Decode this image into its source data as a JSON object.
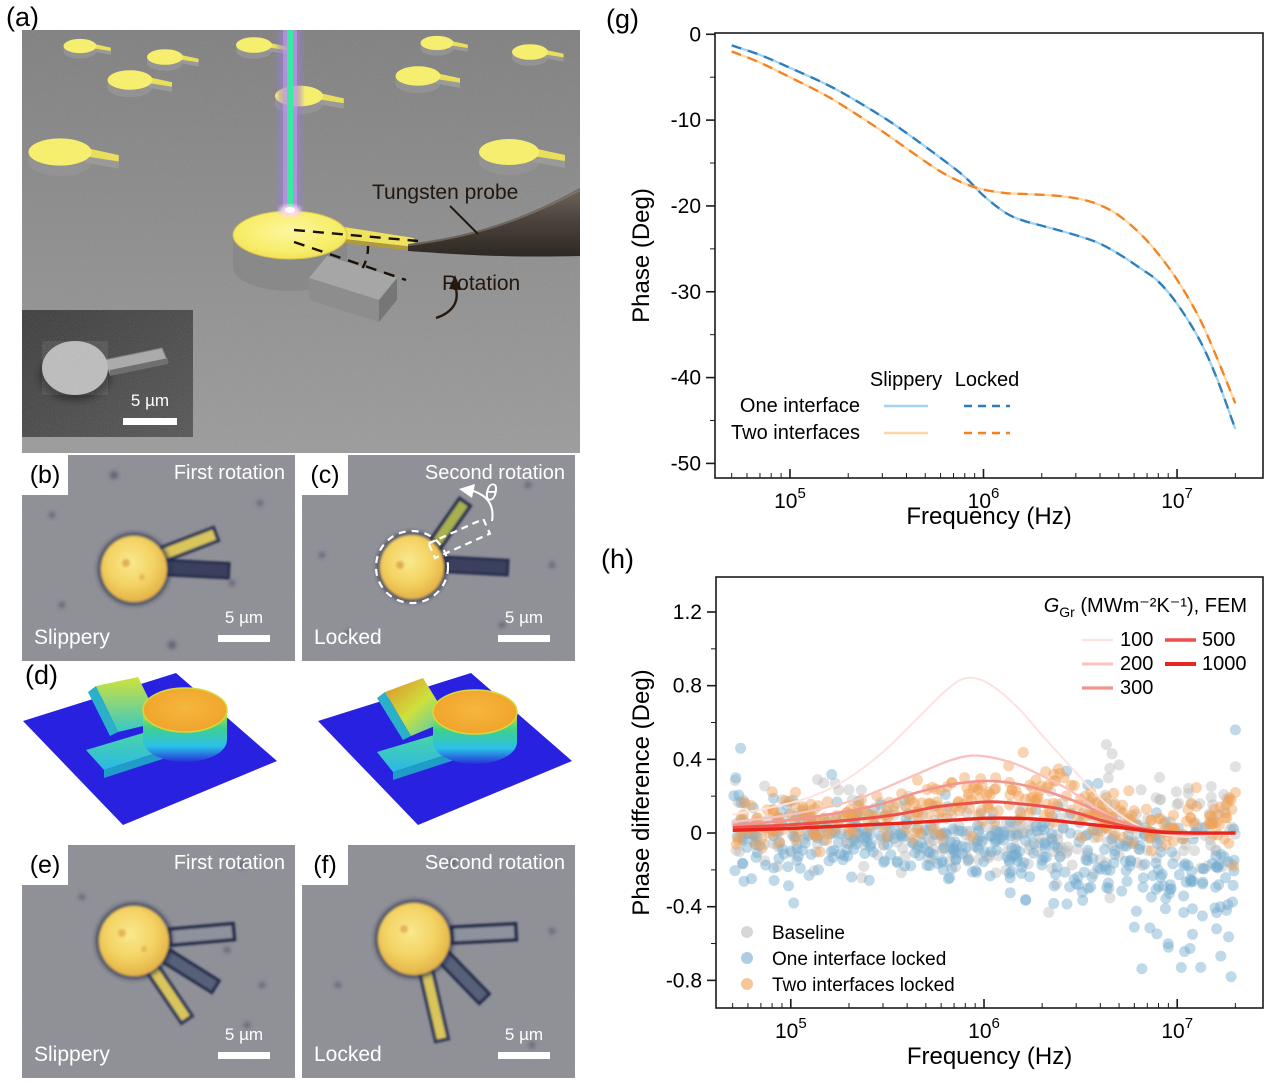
{
  "figure": {
    "panels": {
      "a": {
        "label": "(a)",
        "annotations": {
          "probe": "Tungsten probe",
          "rotation": "Rotation"
        },
        "inset_scale": "5 µm"
      },
      "b": {
        "label": "(b)",
        "step": "First rotation",
        "state": "Slippery",
        "scale": "5 µm"
      },
      "c": {
        "label": "(c)",
        "step": "Second rotation",
        "state": "Locked",
        "scale": "5 µm",
        "angle": "θ"
      },
      "d": {
        "label": "(d)"
      },
      "e": {
        "label": "(e)",
        "step": "First rotation",
        "state": "Slippery",
        "scale": "5 µm"
      },
      "f": {
        "label": "(f)",
        "step": "Second rotation",
        "state": "Locked",
        "scale": "5 µm"
      },
      "g": {
        "label": "(g)"
      },
      "h": {
        "label": "(h)"
      }
    }
  },
  "colors": {
    "one_interface_slippery": "#a3d3ee",
    "one_interface_locked": "#2e7ebc",
    "two_interfaces_slippery": "#fbd8a5",
    "two_interfaces_locked": "#f58220",
    "baseline_dot": "#bdbdbd",
    "one_locked_dot": "#74abcf",
    "two_locked_dot": "#f0a055",
    "laser_core": "#3ce8a4",
    "laser_glow": "#9b7ce0",
    "structure_yellow": "#f6ee6e",
    "surface_plane_blue": "#2921e0"
  },
  "chart_data": [
    {
      "id": "g",
      "type": "line",
      "xscale": "log",
      "xlabel": "Frequency (Hz)",
      "ylabel": "Phase (Deg)",
      "xlim": [
        41000,
        27800000
      ],
      "ylim": [
        -51.7,
        0.15
      ],
      "x_ticks": [
        {
          "value": 100000.0,
          "label": "10^5"
        },
        {
          "value": 1000000.0,
          "label": "10^6"
        },
        {
          "value": 10000000.0,
          "label": "10^7"
        }
      ],
      "y_ticks": [
        {
          "value": 0,
          "label": "0"
        },
        {
          "value": -10,
          "label": "-10"
        },
        {
          "value": -20,
          "label": "-20"
        },
        {
          "value": -30,
          "label": "-30"
        },
        {
          "value": -40,
          "label": "-40"
        },
        {
          "value": -50,
          "label": "-50"
        }
      ],
      "y_minor_step": 5,
      "legend": {
        "col_headers": [
          "Slippery",
          "Locked"
        ],
        "rows": [
          {
            "label": "One interface",
            "solid_color": "#a3d3ee",
            "dash_color": "#2e7ebc"
          },
          {
            "label": "Two interfaces",
            "solid_color": "#fbd8a5",
            "dash_color": "#f58220"
          }
        ]
      },
      "x": [
        50000.0,
        70000.0,
        100000.0,
        150000.0,
        200000.0,
        300000.0,
        400000.0,
        600000.0,
        800000.0,
        1000000.0,
        1300000.0,
        1600000.0,
        2000000.0,
        2600000.0,
        3300000.0,
        4000000.0,
        5000000.0,
        6500000.0,
        8000000.0,
        10000000.0,
        13000000.0,
        16000000.0,
        20000000.0
      ],
      "series": [
        {
          "name": "One interface, Slippery",
          "style": "solid",
          "color": "#a3d3ee",
          "values": [
            -1.3,
            -2.4,
            -3.9,
            -5.7,
            -7.2,
            -9.6,
            -11.5,
            -14.4,
            -16.6,
            -18.8,
            -20.8,
            -21.7,
            -22.3,
            -23.0,
            -23.7,
            -24.4,
            -25.6,
            -27.3,
            -28.8,
            -31.4,
            -35.5,
            -40.0,
            -46.0
          ]
        },
        {
          "name": "One interface, Locked",
          "style": "dashed",
          "color": "#2e7ebc",
          "values": [
            -1.3,
            -2.4,
            -3.9,
            -5.7,
            -7.2,
            -9.6,
            -11.5,
            -14.4,
            -16.6,
            -18.8,
            -20.8,
            -21.7,
            -22.3,
            -23.0,
            -23.7,
            -24.4,
            -25.6,
            -27.3,
            -28.8,
            -31.4,
            -35.5,
            -40.0,
            -46.0
          ]
        },
        {
          "name": "Two interfaces, Slippery",
          "style": "solid",
          "color": "#fbd8a5",
          "values": [
            -2.0,
            -3.3,
            -5.0,
            -7.0,
            -8.7,
            -11.3,
            -13.3,
            -16.0,
            -17.4,
            -18.1,
            -18.5,
            -18.6,
            -18.7,
            -18.9,
            -19.3,
            -19.9,
            -21.1,
            -23.3,
            -25.6,
            -28.6,
            -33.0,
            -37.6,
            -43.0
          ]
        },
        {
          "name": "Two interfaces, Locked",
          "style": "dashed",
          "color": "#f58220",
          "values": [
            -2.0,
            -3.3,
            -5.0,
            -7.0,
            -8.7,
            -11.3,
            -13.3,
            -16.0,
            -17.4,
            -18.1,
            -18.5,
            -18.6,
            -18.7,
            -18.9,
            -19.3,
            -19.9,
            -21.1,
            -23.3,
            -25.6,
            -28.6,
            -33.0,
            -37.6,
            -43.0
          ]
        }
      ]
    },
    {
      "id": "h",
      "type": "scatter+line",
      "xscale": "log",
      "xlabel": "Frequency (Hz)",
      "ylabel": "Phase difference (Deg)",
      "xlim": [
        41000,
        27800000
      ],
      "ylim": [
        -0.95,
        1.39
      ],
      "x_ticks": [
        {
          "value": 100000.0,
          "label": "10^5"
        },
        {
          "value": 1000000.0,
          "label": "10^6"
        },
        {
          "value": 10000000.0,
          "label": "10^7"
        }
      ],
      "y_ticks": [
        {
          "value": -0.8,
          "label": "-0.8"
        },
        {
          "value": -0.4,
          "label": "-0.4"
        },
        {
          "value": 0,
          "label": "0"
        },
        {
          "value": 0.4,
          "label": "0.4"
        },
        {
          "value": 0.8,
          "label": "0.8"
        },
        {
          "value": 1.2,
          "label": "1.2"
        }
      ],
      "y_minor_step": 0.2,
      "fem_legend": {
        "title_italic": "G",
        "title_sub": "Gr",
        "title_suffix": " (MWm⁻²K⁻¹), FEM"
      },
      "fem_curves": [
        {
          "g_value": "100",
          "color": "#fce3e1",
          "width": 2,
          "points": [
            [
              50000.0,
              0.1
            ],
            [
              80000.0,
              0.14
            ],
            [
              130000.0,
              0.2
            ],
            [
              200000.0,
              0.3
            ],
            [
              300000.0,
              0.44
            ],
            [
              450000.0,
              0.62
            ],
            [
              600000.0,
              0.75
            ],
            [
              750000.0,
              0.83
            ],
            [
              900000.0,
              0.84
            ],
            [
              1100000.0,
              0.8
            ],
            [
              1500000.0,
              0.68
            ],
            [
              2000000.0,
              0.53
            ],
            [
              2700000.0,
              0.38
            ],
            [
              3500000.0,
              0.25
            ],
            [
              4500000.0,
              0.14
            ],
            [
              6000000.0,
              0.05
            ],
            [
              8000000.0,
              0.0
            ],
            [
              11000000.0,
              -0.02
            ],
            [
              15000000.0,
              -0.01
            ],
            [
              20000000.0,
              0.0
            ]
          ]
        },
        {
          "g_value": "200",
          "color": "#f9c2bf",
          "width": 2.3,
          "points": [
            [
              50000.0,
              0.06
            ],
            [
              100000.0,
              0.1
            ],
            [
              200000.0,
              0.17
            ],
            [
              300000.0,
              0.24
            ],
            [
              450000.0,
              0.32
            ],
            [
              650000.0,
              0.39
            ],
            [
              850000.0,
              0.42
            ],
            [
              1100000.0,
              0.41
            ],
            [
              1500000.0,
              0.37
            ],
            [
              2000000.0,
              0.31
            ],
            [
              2700000.0,
              0.24
            ],
            [
              3500000.0,
              0.16
            ],
            [
              4500000.0,
              0.09
            ],
            [
              6000000.0,
              0.03
            ],
            [
              8000000.0,
              0.0
            ],
            [
              12000000.0,
              -0.01
            ],
            [
              20000000.0,
              0.0
            ]
          ]
        },
        {
          "g_value": "300",
          "color": "#f49490",
          "width": 2.6,
          "points": [
            [
              50000.0,
              0.045
            ],
            [
              100000.0,
              0.07
            ],
            [
              200000.0,
              0.12
            ],
            [
              300000.0,
              0.16
            ],
            [
              450000.0,
              0.22
            ],
            [
              650000.0,
              0.26
            ],
            [
              900000.0,
              0.28
            ],
            [
              1200000.0,
              0.28
            ],
            [
              1600000.0,
              0.26
            ],
            [
              2200000.0,
              0.22
            ],
            [
              3000000.0,
              0.17
            ],
            [
              4000000.0,
              0.11
            ],
            [
              5500000.0,
              0.05
            ],
            [
              8000000.0,
              0.01
            ],
            [
              12000000.0,
              0.0
            ],
            [
              20000000.0,
              0.0
            ]
          ]
        },
        {
          "g_value": "500",
          "color": "#ee4f49",
          "width": 3,
          "points": [
            [
              50000.0,
              0.03
            ],
            [
              100000.0,
              0.045
            ],
            [
              200000.0,
              0.07
            ],
            [
              350000.0,
              0.1
            ],
            [
              550000.0,
              0.14
            ],
            [
              800000.0,
              0.16
            ],
            [
              1100000.0,
              0.17
            ],
            [
              1500000.0,
              0.16
            ],
            [
              2200000.0,
              0.14
            ],
            [
              3000000.0,
              0.11
            ],
            [
              4000000.0,
              0.07
            ],
            [
              5500000.0,
              0.035
            ],
            [
              8000000.0,
              0.01
            ],
            [
              12000000.0,
              0.0
            ],
            [
              20000000.0,
              0.0
            ]
          ]
        },
        {
          "g_value": "1000",
          "color": "#e9261d",
          "width": 3.4,
          "points": [
            [
              50000.0,
              0.015
            ],
            [
              100000.0,
              0.025
            ],
            [
              200000.0,
              0.04
            ],
            [
              400000.0,
              0.055
            ],
            [
              700000.0,
              0.07
            ],
            [
              1000000.0,
              0.08
            ],
            [
              1500000.0,
              0.08
            ],
            [
              2200000.0,
              0.07
            ],
            [
              3000000.0,
              0.055
            ],
            [
              4500000.0,
              0.035
            ],
            [
              6000000.0,
              0.02
            ],
            [
              8000000.0,
              0.005
            ],
            [
              12000000.0,
              0.0
            ],
            [
              20000000.0,
              0.0
            ]
          ]
        }
      ],
      "scatter_legend": [
        "Baseline",
        "One interface locked",
        "Two interfaces locked"
      ],
      "scatter_series": [
        {
          "name": "Baseline",
          "color": "#bdbdbd",
          "n": 300,
          "seed": 11,
          "trend": [
            [
              50000.0,
              0.04,
              0.1
            ],
            [
              150000.0,
              0.02,
              0.1
            ],
            [
              500000.0,
              -0.02,
              0.1
            ],
            [
              1500000.0,
              -0.04,
              0.1
            ],
            [
              4000000.0,
              0.0,
              0.12
            ],
            [
              10000000.0,
              0.03,
              0.12
            ],
            [
              20000000.0,
              0.0,
              0.13
            ]
          ],
          "outliers": [
            [
              4300000.0,
              0.48
            ],
            [
              4600000.0,
              0.43
            ],
            [
              5000000.0,
              0.37
            ],
            [
              4400000.0,
              0.3
            ],
            [
              170000.0,
              0.27
            ],
            [
              20000000.0,
              0.36
            ]
          ]
        },
        {
          "name": "One interface locked",
          "color": "#74abcf",
          "n": 400,
          "seed": 22,
          "trend": [
            [
              50000.0,
              0.0,
              0.12
            ],
            [
              150000.0,
              -0.04,
              0.11
            ],
            [
              500000.0,
              -0.06,
              0.1
            ],
            [
              1500000.0,
              -0.07,
              0.11
            ],
            [
              4000000.0,
              -0.14,
              0.14
            ],
            [
              8000000.0,
              -0.22,
              0.17
            ],
            [
              13000000.0,
              -0.28,
              0.18
            ],
            [
              20000000.0,
              -0.22,
              0.2
            ]
          ],
          "outliers": [
            [
              55000.0,
              0.46
            ],
            [
              52000.0,
              0.3
            ],
            [
              9000000.0,
              -0.62
            ],
            [
              10500000.0,
              -0.73
            ],
            [
              12000000.0,
              -0.55
            ],
            [
              13500000.0,
              -0.45
            ],
            [
              16000000.0,
              -0.52
            ],
            [
              18000000.0,
              -0.42
            ],
            [
              19000000.0,
              -0.78
            ],
            [
              20000000.0,
              0.56
            ]
          ]
        },
        {
          "name": "Two interfaces locked",
          "color": "#f0a055",
          "n": 320,
          "seed": 33,
          "trend": [
            [
              50000.0,
              0.04,
              0.07
            ],
            [
              150000.0,
              0.07,
              0.07
            ],
            [
              400000.0,
              0.11,
              0.08
            ],
            [
              900000.0,
              0.17,
              0.08
            ],
            [
              2000000.0,
              0.22,
              0.07
            ],
            [
              3500000.0,
              0.13,
              0.08
            ],
            [
              6000000.0,
              0.03,
              0.06
            ],
            [
              9000000.0,
              -0.02,
              0.06
            ],
            [
              14000000.0,
              0.05,
              0.09
            ],
            [
              20000000.0,
              0.04,
              0.1
            ]
          ],
          "outliers": [
            [
              2300000.0,
              0.32
            ],
            [
              2600000.0,
              0.3
            ],
            [
              1150000.0,
              0.3
            ],
            [
              20000000.0,
              0.22
            ],
            [
              19000000.0,
              0.18
            ]
          ]
        }
      ]
    }
  ]
}
